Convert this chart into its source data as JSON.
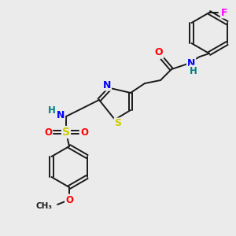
{
  "bg_color": "#ebebeb",
  "bond_color": "#1a1a1a",
  "colors": {
    "O": "#ff0000",
    "N": "#0000ff",
    "S": "#cccc00",
    "F": "#ff00ff",
    "H": "#008080",
    "C": "#1a1a1a"
  },
  "figsize": [
    3.0,
    3.0
  ],
  "dpi": 100
}
